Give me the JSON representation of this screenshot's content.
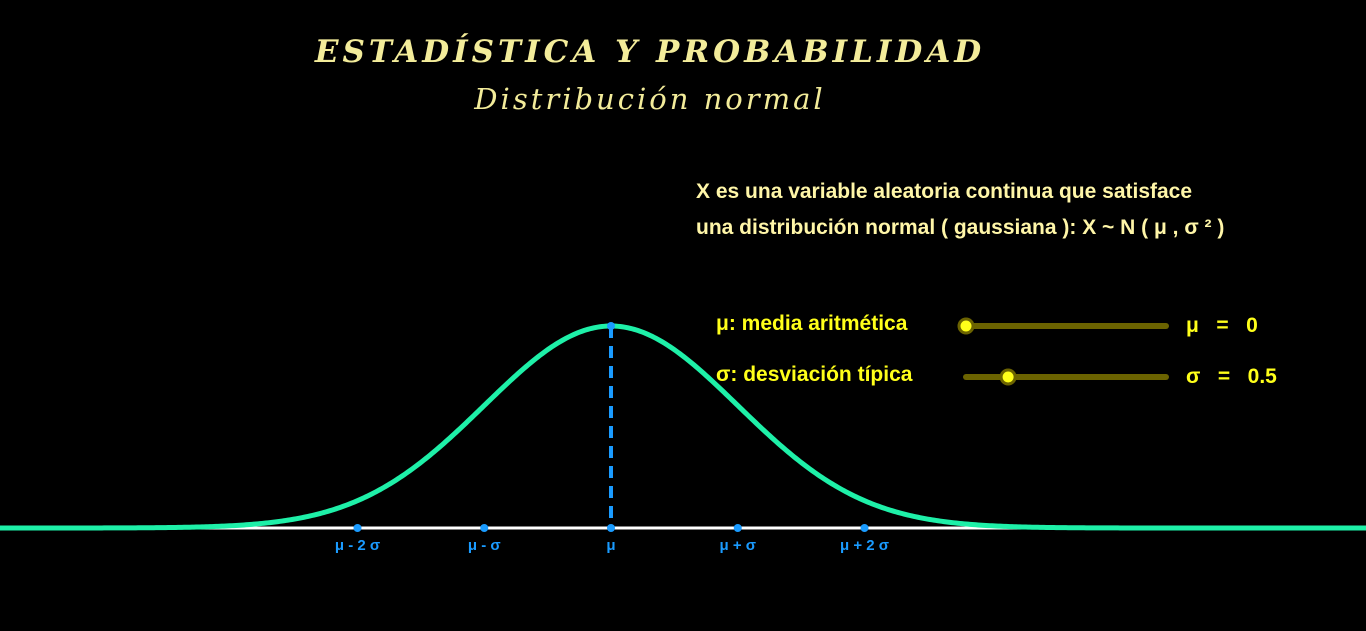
{
  "header": {
    "title": "ESTADÍSTICA Y PROBABILIDAD",
    "subtitle": "Distribución normal"
  },
  "description": {
    "line1": "X  es una variable aleatoria continua que satisface",
    "line2": "una distribución normal ( gaussiana ):  X ~ N ( μ , σ ² )"
  },
  "sliders": {
    "mu": {
      "label": "μ: media aritmética",
      "readout": "μ   =   0",
      "value": 0,
      "min": 0,
      "max": 5
    },
    "sigma": {
      "label": "σ: desviación típica",
      "readout": "σ   =   0.5",
      "value": 0.5,
      "min": 0.1,
      "max": 2
    }
  },
  "colors": {
    "curve": "#1ef0a8",
    "axis": "#ffffff",
    "points": "#1a9bff",
    "slider_track": "#6b6300",
    "slider_knob": "#ffff1a"
  },
  "chart_data": {
    "type": "line",
    "series": [
      {
        "function": "normal pdf",
        "mu": 0,
        "sigma": 0.5
      }
    ],
    "x_tick_labels": [
      "μ - 2 σ",
      "μ - σ",
      "μ",
      "μ + σ",
      "μ + 2 σ"
    ],
    "x_tick_values": [
      -1,
      -0.5,
      0,
      0.5,
      1
    ],
    "mean_line": "dashed vertical at μ",
    "grid": false
  }
}
